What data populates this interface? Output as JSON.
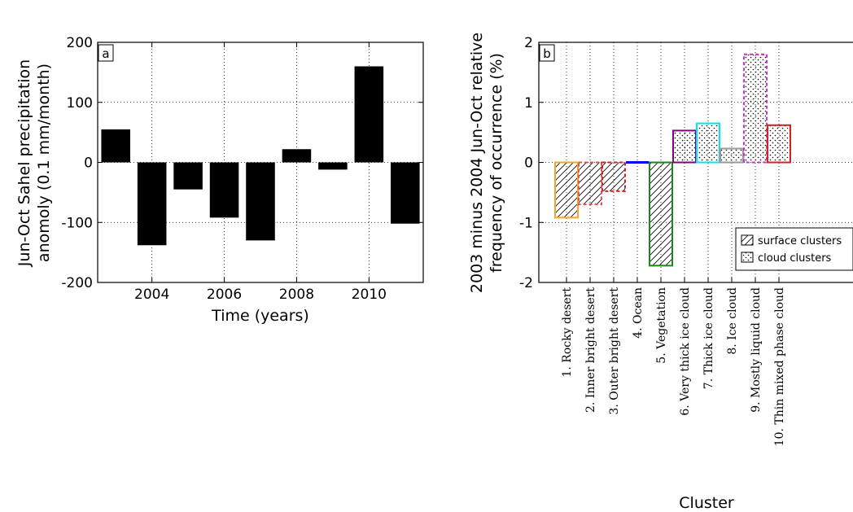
{
  "chart_data": [
    {
      "type": "bar",
      "panel_label": "a",
      "x": [
        2003,
        2004,
        2005,
        2006,
        2007,
        2008,
        2009,
        2010,
        2011
      ],
      "values": [
        55,
        -138,
        -45,
        -92,
        -130,
        22,
        -12,
        160,
        -102
      ],
      "xlabel": "Time (years)",
      "ylabel_lines": [
        "Jun-Oct Sahel precipitation",
        "anomoly (0.1 mm/month)"
      ],
      "ylim": [
        -200,
        200
      ],
      "xlim": [
        2002.5,
        2011.5
      ],
      "yticks": [
        -200,
        -100,
        0,
        100,
        200
      ],
      "xticks": [
        2004,
        2006,
        2008,
        2010
      ],
      "bar_color": "#000000",
      "grid": "dotted"
    },
    {
      "type": "bar",
      "panel_label": "b",
      "categories": [
        "1. Rocky desert",
        "2. Inner bright desert",
        "3. Outer bright desert",
        "4. Ocean",
        "5. Vegetation",
        "6. Very thick ice cloud",
        "7. Thick ice cloud",
        "8. Ice cloud",
        "9. Mostly liquid cloud",
        "10. Thin mixed phase cloud"
      ],
      "values": [
        -0.92,
        -0.7,
        -0.48,
        -0.02,
        -1.72,
        0.53,
        0.65,
        0.23,
        1.8,
        0.62
      ],
      "kinds": [
        "surface",
        "surface",
        "surface",
        "surface",
        "surface",
        "cloud",
        "cloud",
        "cloud",
        "cloud",
        "cloud"
      ],
      "edge_colors": [
        "#f5a623",
        "#e25050",
        "#d62020",
        "#0000ff",
        "#1a8a1a",
        "#800080",
        "#00e5ee",
        "#999999",
        "#cc33cc",
        "#d62020"
      ],
      "edge_dashed": [
        false,
        true,
        true,
        false,
        false,
        false,
        false,
        false,
        true,
        false
      ],
      "xlabel": "Cluster",
      "ylabel_lines": [
        "2003 minus 2004 Jun-Oct relative",
        "frequency of occurrence (%)"
      ],
      "ylim": [
        -2,
        2
      ],
      "yticks": [
        -2,
        -1,
        0,
        1,
        2
      ],
      "grid": "dotted",
      "legend": {
        "placement": "lower-right",
        "entries": [
          {
            "label": "surface clusters",
            "pattern": "hatch"
          },
          {
            "label": "cloud clusters",
            "pattern": "dots"
          }
        ]
      }
    }
  ]
}
